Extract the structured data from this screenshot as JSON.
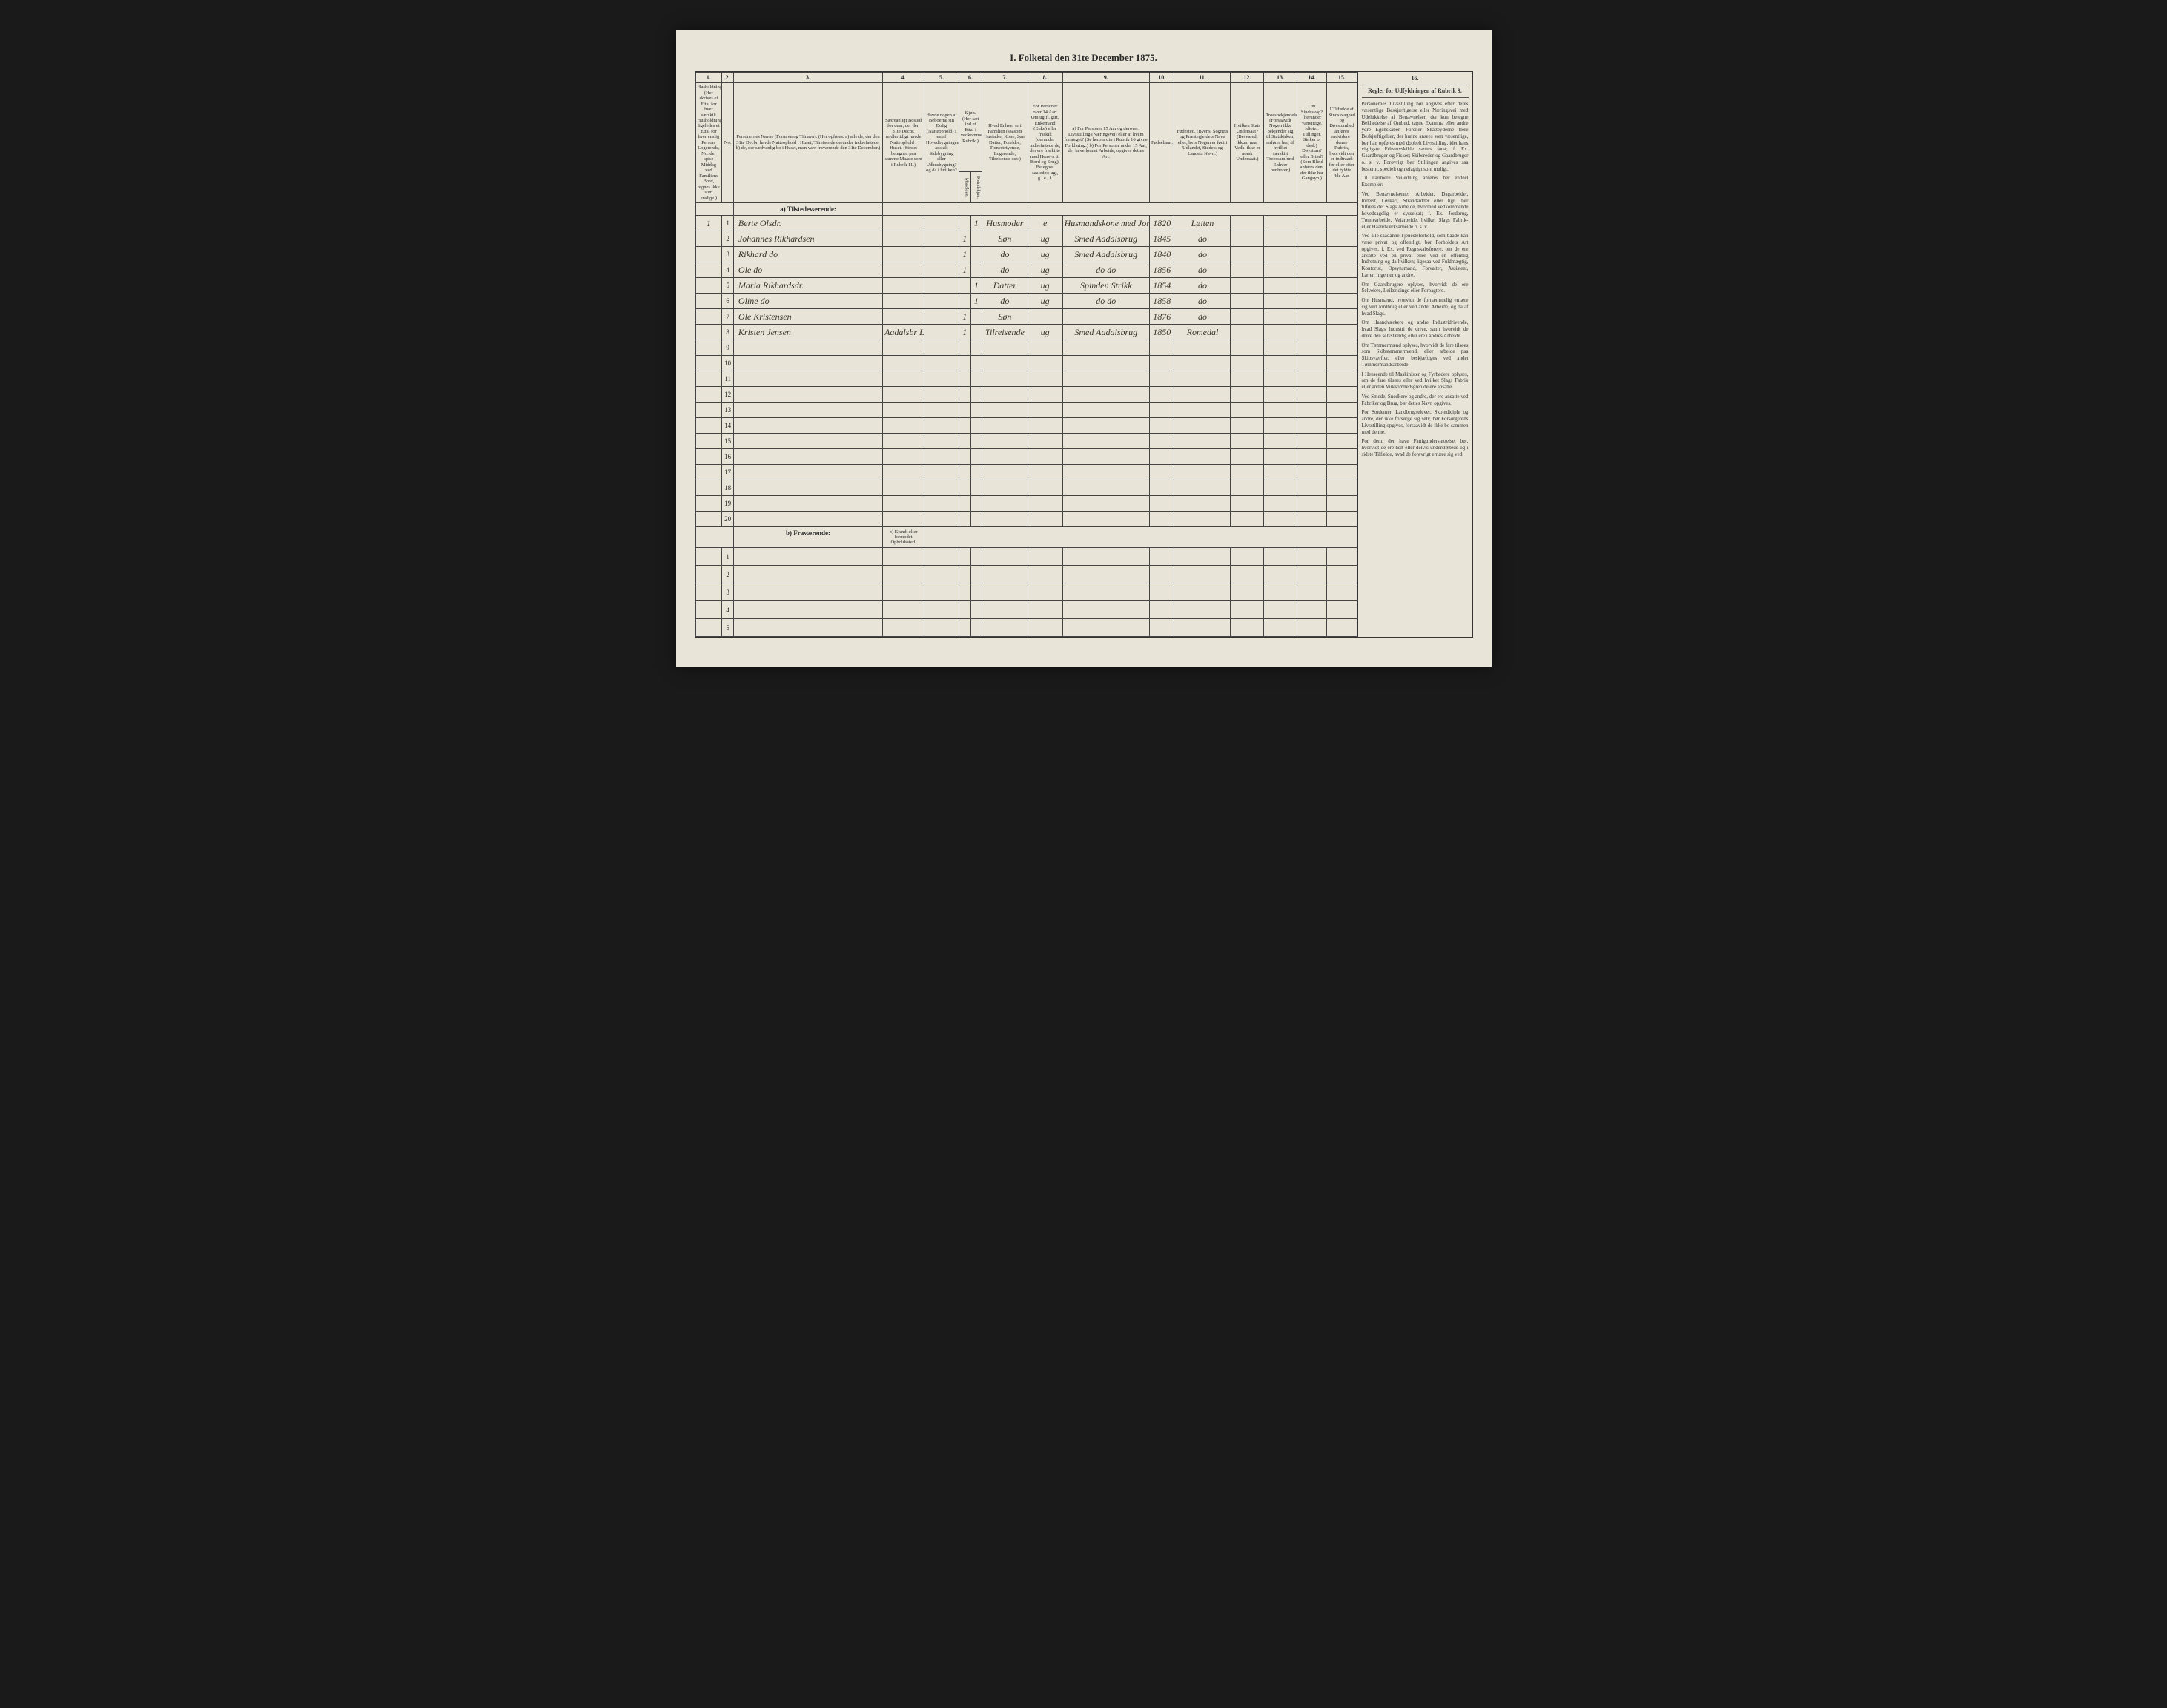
{
  "title": "I. Folketal den 31te December 1875.",
  "columns": {
    "nums": [
      "1.",
      "2.",
      "3.",
      "4.",
      "5.",
      "6.",
      "7.",
      "8.",
      "9.",
      "10.",
      "11.",
      "12.",
      "13.",
      "14.",
      "15.",
      "16."
    ],
    "h1": "Husholdninger. (Her skrives et Ettal for hver særskilt Husholdning; ligeledes et Ettal for hver enslig Person. Logerende, No. der spise Middag ved Familiens Bord, regnes ikke som enslige.)",
    "h2": "No.",
    "h3": "Personernes Navne (Fornavn og Tilnavn). (Her opføres: a) alle de, der den 31te Decbr. havde Natteophold i Huset, Tilreisende derunder indbefattede; b) de, der sædvanlig bo i Huset, men vare fraværende den 31te December.)",
    "h4": "Sædvanligt Bosted for dem, der den 31te Decbr. midlertidigt havde Natteophold i Huset. (Stedet betegnes paa samme Maade som i Rubrik 11.)",
    "h5": "Havde nogen af Beboerne sin Bolig (Natteophold) i en af Hovedbygningen adskilt Sidebygning eller Udhusbygning? og da i hvilken?",
    "h6": "Kjøn. (Her sæt ind et Ettal i vedkommende Rubrik.)",
    "h6a": "Mandkjøn.",
    "h6b": "Kvindekjøn.",
    "h7": "Hvad Enhver er i Familien (saasom Husfader, Kone, Søn, Datter, Foreldre, Tjenestetyende, Logerende, Tilreisende osv.)",
    "h8": "For Personer over 14 Aar: Om ugift, gift, Enkemand (Enke) eller fraskilt (derunder indbefattede de, der ere fraskilte med Hensyn til Bord og Seng). Betegnes saaledes: ug., g., e., f.",
    "h9": "a) For Personer 15 Aar og derover: Livsstilling (Næringsvei) eller af hvem forsørget? (Se herom din i Rubrik 16 givne Forklaring.) b) For Personer under 15 Aar, der have lønnet Arbeide, opgives dettes Art.",
    "h10": "Fødselsaar.",
    "h11": "Fødested. (Byens, Sognets og Præstegjeldets Navn eller, hvis Nogen er født i Udlandet, Stedets og Landets Navn.)",
    "h12": "Hvilken Stats Undersaat? (Besvaredt ikkun, naar Vedk. ikke er norsk Undersaat.)",
    "h13": "Troesbekjendelse. (Forsaavidt Nogen ikke bekjender sig til Statskirken, anføres her, til hvilket særskilt Troessamfund Enhver henhorer.)",
    "h14": "Om Sindssvag? (herunder Vanvittige, Idioter, Tullinger, Sinker o. desl.) Døvstum? eller Blind? (Som Blind anføres den, der ikke har Gangsyn.)",
    "h15": "I Tilfælde af Sindssvaghed og Døvstumhed anføres endvidere i denne Rubrik, hvorvidt den er indtraadt før eller efter det fyldte 4de Aar.",
    "h16": "Regler for Udfyldningen af Rubrik 9."
  },
  "section_present": "a) Tilstedeværende:",
  "section_absent": "b) Fraværende:",
  "absent_col4": "b) Kjendt eller formodet Opholdssted.",
  "rows": [
    {
      "n": "1",
      "name": "Berte Olsdr.",
      "c4": "",
      "c5": "",
      "m": "",
      "k": "1",
      "rel": "Husmoder",
      "civ": "e",
      "occ": "Husmandskone med Jord Strikning",
      "yr": "1820",
      "place": "Løiten"
    },
    {
      "n": "2",
      "name": "Johannes Rikhardsen",
      "c4": "",
      "c5": "",
      "m": "1",
      "k": "",
      "rel": "Søn",
      "civ": "ug",
      "occ": "Smed Aadalsbrug",
      "yr": "1845",
      "place": "do"
    },
    {
      "n": "3",
      "name": "Rikhard do",
      "c4": "",
      "c5": "",
      "m": "1",
      "k": "",
      "rel": "do",
      "civ": "ug",
      "occ": "Smed Aadalsbrug",
      "yr": "1840",
      "place": "do"
    },
    {
      "n": "4",
      "name": "Ole do",
      "c4": "",
      "c5": "",
      "m": "1",
      "k": "",
      "rel": "do",
      "civ": "ug",
      "occ": "do do",
      "yr": "1856",
      "place": "do"
    },
    {
      "n": "5",
      "name": "Maria Rikhardsdr.",
      "c4": "",
      "c5": "",
      "m": "",
      "k": "1",
      "rel": "Datter",
      "civ": "ug",
      "occ": "Spinden Strikk",
      "yr": "1854",
      "place": "do"
    },
    {
      "n": "6",
      "name": "Oline do",
      "c4": "",
      "c5": "",
      "m": "",
      "k": "1",
      "rel": "do",
      "civ": "ug",
      "occ": "do do",
      "yr": "1858",
      "place": "do"
    },
    {
      "n": "7",
      "name": "Ole Kristensen",
      "c4": "",
      "c5": "",
      "m": "1",
      "k": "",
      "rel": "Søn",
      "civ": "",
      "occ": "",
      "yr": "1876",
      "place": "do"
    },
    {
      "n": "8",
      "name": "Kristen Jensen",
      "c4": "Aadalsbr Løiten",
      "c5": "",
      "m": "1",
      "k": "",
      "rel": "Tilreisende",
      "civ": "ug",
      "occ": "Smed Aadalsbrug",
      "yr": "1850",
      "place": "Romedal"
    }
  ],
  "empty_present": [
    "9",
    "10",
    "11",
    "12",
    "13",
    "14",
    "15",
    "16",
    "17",
    "18",
    "19",
    "20"
  ],
  "empty_absent": [
    "1",
    "2",
    "3",
    "4",
    "5"
  ],
  "sidebar": {
    "p1": "Personernes Livsstilling bør angives efter deres væsentlige Beskjæftigelse eller Næringsvei med Udelukkelse af Benævnelser, der kun betegne Beklædelse af Ombud, tagne Examina eller andre ydre Egenskaber. Forener Skatteyderne flere Beskjæftigelser, der hunne ansees som væsentlige, bør han opføres med dobbelt Livsstilling, idet hans vigtigste Erhvervskilde sættes først; f. Ex. Gaardbruger og Fisker; Skibsreder og Gaardbruger o. s. v. Forøvrigt bør Stillingen angives saa bestemt, specielt og nøiagtigt som muligt.",
    "p2": "Til nærmere Veiledning anføres her endeel Exempler:",
    "p3": "Ved Benævnelserne: Arbeider, Dagarbeider, Inderst, Løskarl, Strandsidder eller lign. bør tilføies det Slags Arbeide, hvormed vedkommende hovedsagelig er sysselsat; f. Ex. Jordbrug, Tømtearbeide, Veiarbeide, hvilket Slags Fabrik- eller Haandværksarbeide o. s. v.",
    "p4": "Ved alle saadanne Tjenesteforhold, som baade kan være privat og offentligt, bør Forholdets Art opgives, f. Ex. ved Regnskabsførere, om de ere ansatte ved en privat eller ved en offentlig Indretning og da hvilken; ligesaa ved Fuldmægtig, Kontorist, Opsynsmand, Forvalter, Assistent, Lærer, Ingeniør og andre.",
    "p5": "Om Gaardbrugere oplyses, hvorvidt de ere Selveiere, Leilændinge eller Forpagtere.",
    "p6": "Om Husmænd, hvorvidt de fornæmmelig ernære sig ved Jordbrug eller ved andet Arbeide, og da af hvad Slags.",
    "p7": "Om Haandværkere og andre Industridrivende, hvad Slags Industri de drive, samt hvorvidt de drive den selvstændig eller ere i andres Arbeide.",
    "p8": "Om Tømmermænd oplyses, hvorvidt de fare tilsøes som Skibstømmermænd, eller arbeide paa Skibsværfter, eller beskjæftiges ved andet Tømmermandsarbeide.",
    "p9": "I Henseende til Maskinister og Fyrbødere oplyses, om de fare tilsøes eller ved hvilket Slags Fabrik eller anden Virksomhedsgren de ere ansatte.",
    "p10": "Ved Smede, Snedkere og andre, der ere ansatte ved Fabriker og Brug, bør dettes Navn opgives.",
    "p11": "For Studenter, Landbrugselever, Skolediciple og andre, der ikke forsørge sig selv, bør Forsørgerens Livsstilling opgives, forsaavidt de ikke bo sammen med denne.",
    "p12": "For dem, der have Fattigunderstøttelse, bør, hvorvidt de ere helt eller delvis understøttede og i sidste Tilfælde, hvad de forøvrigt ernære sig ved."
  }
}
